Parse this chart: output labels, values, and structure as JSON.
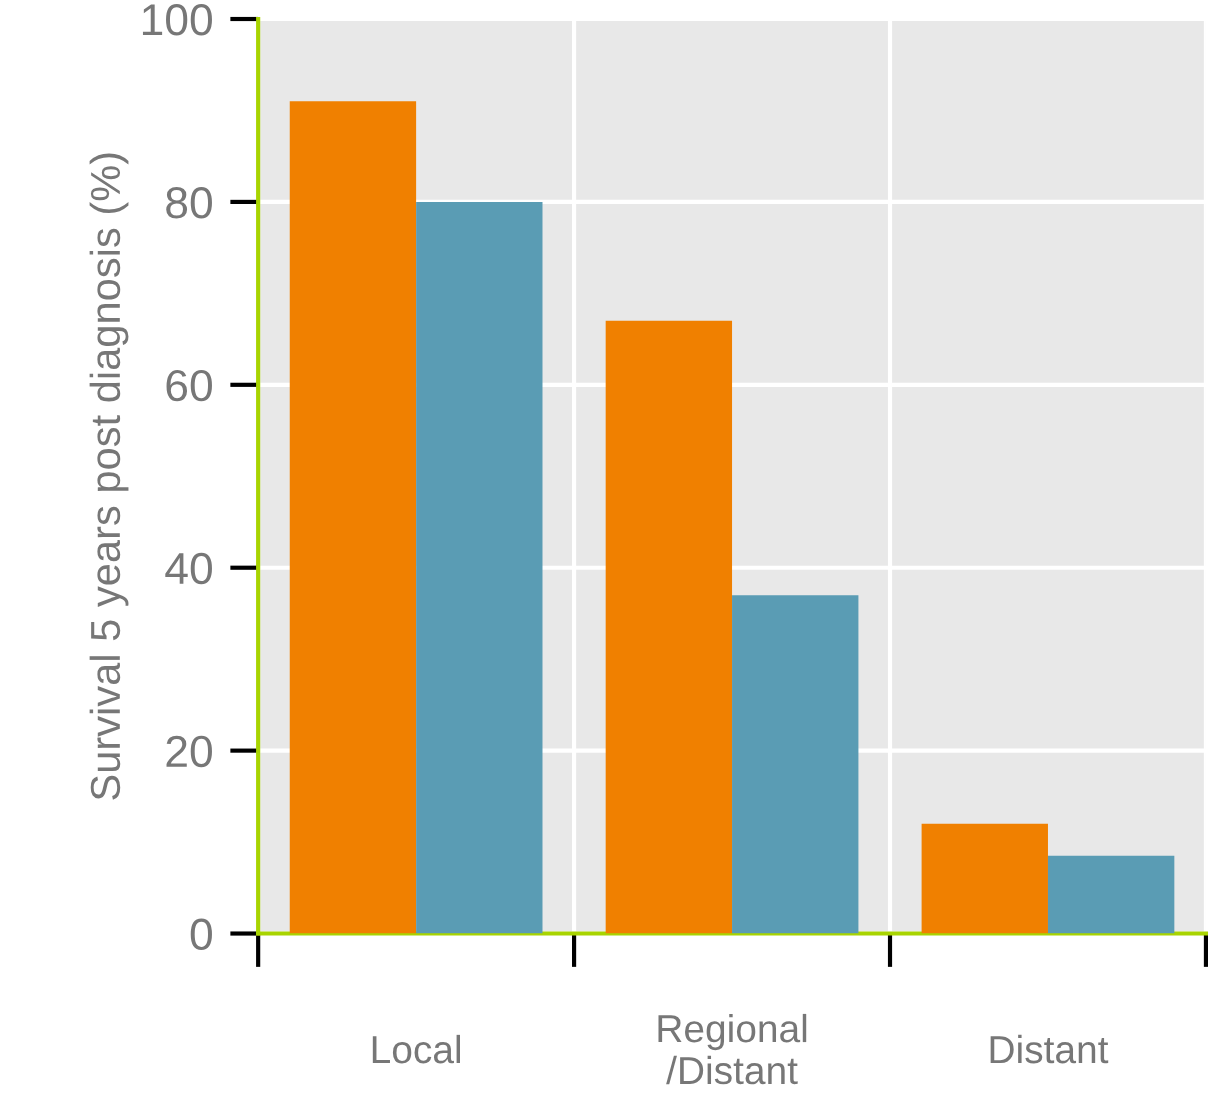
{
  "chart_data": {
    "type": "bar",
    "ylabel": "Survival 5 years post diagnosis (%)",
    "categories": [
      "Local",
      "Regional\n/Distant",
      "Distant"
    ],
    "series": [
      {
        "color": "#f08000",
        "values": [
          91,
          67,
          12
        ]
      },
      {
        "color": "#5a9cb4",
        "values": [
          80,
          37,
          8.5
        ]
      }
    ],
    "ylim": [
      0,
      100
    ],
    "yticks": [
      0,
      20,
      40,
      60,
      80,
      100
    ],
    "grid": true
  }
}
